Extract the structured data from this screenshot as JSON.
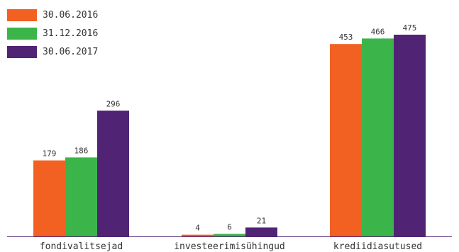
{
  "chart_data": {
    "type": "bar",
    "categories": [
      "fondivalitsejad",
      "investeerimisühingud",
      "krediidiasutused"
    ],
    "series": [
      {
        "name": "30.06.2016",
        "color": "#f26122",
        "values": [
          179,
          4,
          453
        ]
      },
      {
        "name": "31.12.2016",
        "color": "#3bb54a",
        "values": [
          186,
          6,
          466
        ]
      },
      {
        "name": "30.06.2017",
        "color": "#512374",
        "values": [
          296,
          21,
          475
        ]
      }
    ],
    "ylim": [
      0,
      500
    ],
    "grid": false,
    "legend_position": "top-left",
    "axis_color": "#512374",
    "text_color": "#333333"
  }
}
